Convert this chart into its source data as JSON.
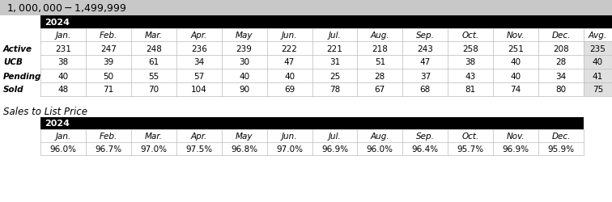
{
  "title": "$1,000,000 - $1,499,999",
  "title_bg": "#c8c8c8",
  "year_label": "2024",
  "col_headers": [
    "Jan.",
    "Feb.",
    "Mar.",
    "Apr.",
    "May",
    "Jun.",
    "Jul.",
    "Aug.",
    "Sep.",
    "Oct.",
    "Nov.",
    "Dec.",
    "Avg."
  ],
  "row_labels": [
    "Active",
    "UCB",
    "Pending",
    "Sold"
  ],
  "table1_data": [
    [
      231,
      247,
      248,
      236,
      239,
      222,
      221,
      218,
      243,
      258,
      251,
      208,
      235
    ],
    [
      38,
      39,
      61,
      34,
      30,
      47,
      31,
      51,
      47,
      38,
      40,
      28,
      40
    ],
    [
      40,
      50,
      55,
      57,
      40,
      40,
      25,
      28,
      37,
      43,
      40,
      34,
      41
    ],
    [
      48,
      71,
      70,
      104,
      90,
      69,
      78,
      67,
      68,
      81,
      74,
      80,
      75
    ]
  ],
  "section2_label": "Sales to List Price",
  "col_headers2": [
    "Jan.",
    "Feb.",
    "Mar.",
    "Apr.",
    "May",
    "Jun.",
    "Jul.",
    "Aug.",
    "Sep.",
    "Oct.",
    "Nov.",
    "Dec."
  ],
  "table2_data": [
    "96.0%",
    "96.7%",
    "97.0%",
    "97.5%",
    "96.8%",
    "97.0%",
    "96.9%",
    "96.0%",
    "96.4%",
    "95.7%",
    "96.9%",
    "95.9%"
  ],
  "header_bg": "#000000",
  "header_fg": "#ffffff",
  "avg_bg": "#e0e0e0",
  "body_bg": "#ffffff",
  "font_size": 7.5,
  "header_font_size": 8.0,
  "title_font_size": 9.0,
  "section_font_size": 8.5
}
